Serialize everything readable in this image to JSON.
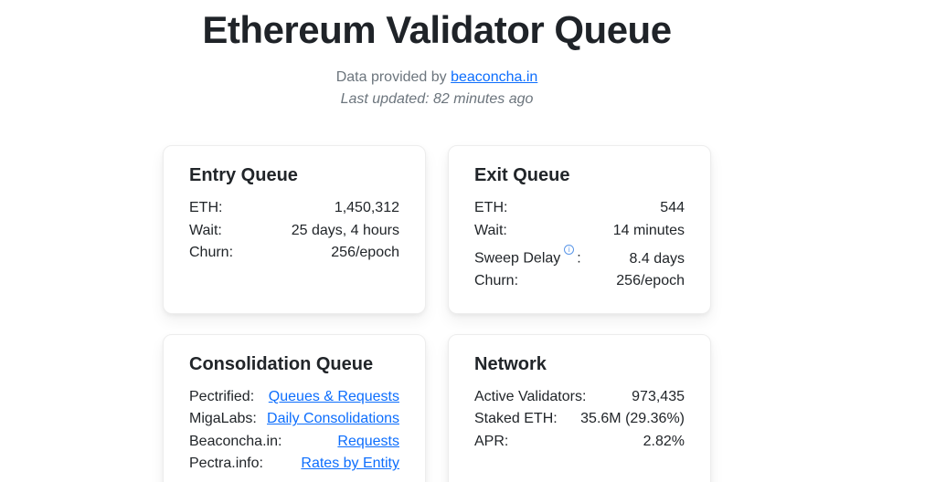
{
  "header": {
    "title": "Ethereum Validator Queue",
    "provider_prefix": "Data provided by ",
    "provider_link": "beaconcha.in",
    "last_updated": "Last updated: 82 minutes ago"
  },
  "colors": {
    "accent_link": "#0d6efd",
    "text": "#212529",
    "muted": "#6c757d",
    "info_icon": "#5a96e8",
    "card_background": "#ffffff"
  },
  "cards": {
    "entry": {
      "title": "Entry Queue",
      "rows": [
        {
          "label": "ETH:",
          "value": "1,450,312"
        },
        {
          "label": "Wait:",
          "value": "25 days, 4 hours"
        },
        {
          "label": "Churn:",
          "value": "256/epoch"
        }
      ]
    },
    "exit": {
      "title": "Exit Queue",
      "rows": [
        {
          "label": "ETH:",
          "value": "544"
        },
        {
          "label": "Wait:",
          "value": "14 minutes"
        },
        {
          "label": "Sweep Delay",
          "icon": "info-icon",
          "icon_glyph": "i",
          "label_suffix": ":",
          "value": "8.4 days"
        },
        {
          "label": "Churn:",
          "value": "256/epoch"
        }
      ]
    },
    "consolidation": {
      "title": "Consolidation Queue",
      "rows": [
        {
          "label": "Pectrified:",
          "value": "Queues & Requests",
          "is_link": true
        },
        {
          "label": "MigaLabs:",
          "value": "Daily Consolidations",
          "is_link": true
        },
        {
          "label": "Beaconcha.in:",
          "value": "Requests",
          "is_link": true
        },
        {
          "label": "Pectra.info:",
          "value": "Rates by Entity",
          "is_link": true
        }
      ]
    },
    "network": {
      "title": "Network",
      "rows": [
        {
          "label": "Active Validators:",
          "value": "973,435"
        },
        {
          "label": "Staked ETH:",
          "value": "35.6M (29.36%)"
        },
        {
          "label": "APR:",
          "value": "2.82%"
        }
      ]
    }
  }
}
